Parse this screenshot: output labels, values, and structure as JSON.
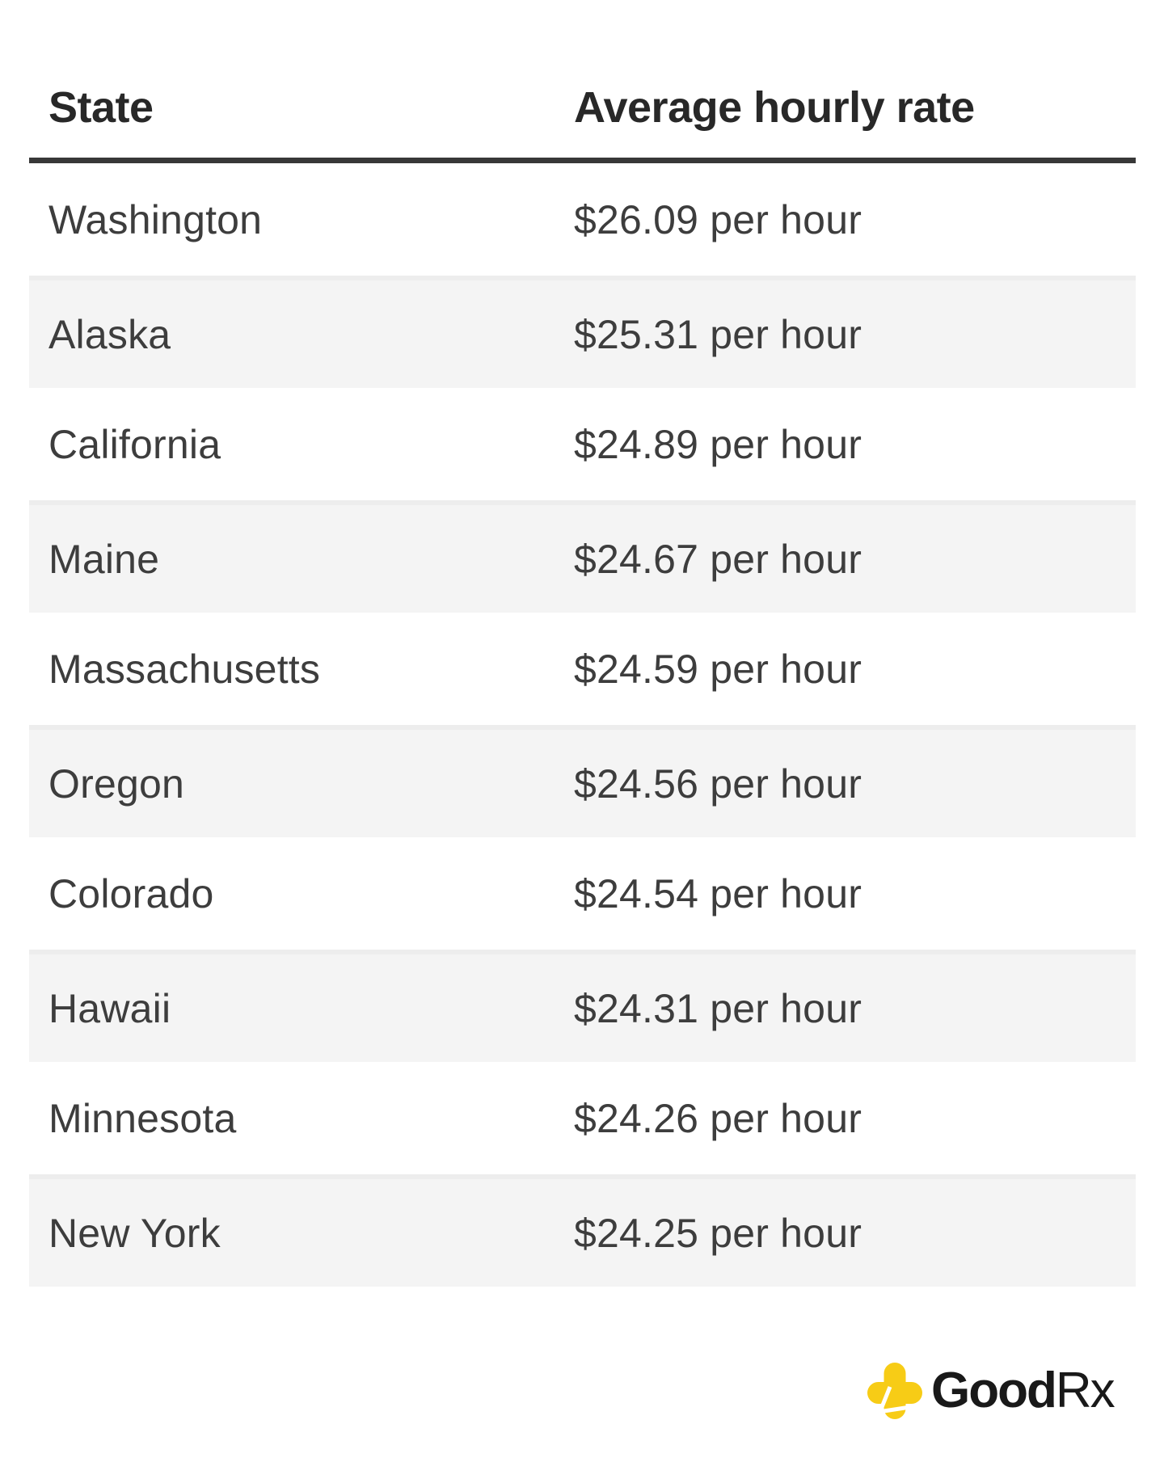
{
  "table": {
    "columns": [
      {
        "label": "State"
      },
      {
        "label": "Average hourly rate"
      }
    ],
    "rows": [
      {
        "state": "Washington",
        "rate": "$26.09 per hour"
      },
      {
        "state": "Alaska",
        "rate": "$25.31 per hour"
      },
      {
        "state": "California",
        "rate": "$24.89 per hour"
      },
      {
        "state": "Maine",
        "rate": "$24.67 per hour"
      },
      {
        "state": "Massachusetts",
        "rate": "$24.59 per hour"
      },
      {
        "state": "Oregon",
        "rate": "$24.56 per hour"
      },
      {
        "state": "Colorado",
        "rate": "$24.54 per hour"
      },
      {
        "state": "Hawaii",
        "rate": "$24.31 per hour"
      },
      {
        "state": "Minnesota",
        "rate": "$24.26 per hour"
      },
      {
        "state": "New York",
        "rate": "$24.25 per hour"
      }
    ]
  },
  "logo": {
    "brand_bold": "Good",
    "brand_regular": "Rx"
  },
  "colors": {
    "accent_yellow": "#f7cc16",
    "stripe_background": "#f4f4f4",
    "stripe_top_edge": "#ededed",
    "header_rule": "#383838",
    "header_text": "#282828",
    "row_text": "#3d3d3d",
    "logo_text": "#191919"
  },
  "chart_data": {
    "type": "table",
    "title": "",
    "columns": [
      "State",
      "Average hourly rate"
    ],
    "categories": [
      "Washington",
      "Alaska",
      "California",
      "Maine",
      "Massachusetts",
      "Oregon",
      "Colorado",
      "Hawaii",
      "Minnesota",
      "New York"
    ],
    "values": [
      26.09,
      25.31,
      24.89,
      24.67,
      24.59,
      24.56,
      24.54,
      24.31,
      24.26,
      24.25
    ],
    "value_unit": "$ per hour",
    "source_brand": "GoodRx"
  }
}
